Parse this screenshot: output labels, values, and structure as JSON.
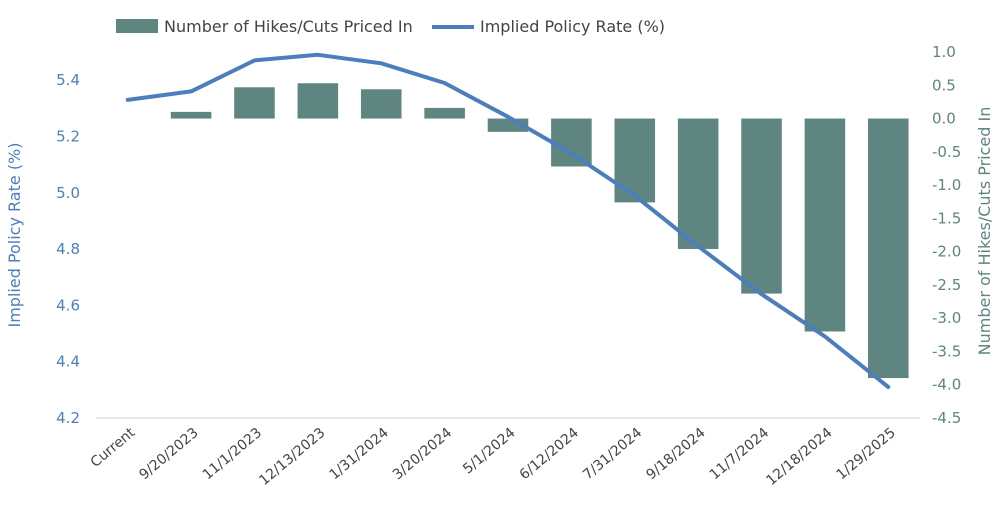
{
  "chart_data": {
    "type": "bar+line",
    "categories": [
      "Current",
      "9/20/2023",
      "11/1/2023",
      "12/13/2023",
      "1/31/2024",
      "3/20/2024",
      "5/1/2024",
      "6/12/2024",
      "7/31/2024",
      "9/18/2024",
      "11/7/2024",
      "12/18/2024",
      "1/29/2025"
    ],
    "series": [
      {
        "name": "Number of Hikes/Cuts Priced In",
        "kind": "bar",
        "axis": "right",
        "color": "#5e8580",
        "values": [
          0,
          0.1,
          0.47,
          0.53,
          0.44,
          0.16,
          -0.2,
          -0.72,
          -1.26,
          -1.96,
          -2.63,
          -3.2,
          -3.9
        ]
      },
      {
        "name": "Implied Policy Rate (%)",
        "kind": "line",
        "axis": "left",
        "color": "#4d7ebc",
        "values": [
          5.33,
          5.36,
          5.47,
          5.49,
          5.46,
          5.39,
          5.27,
          5.14,
          4.99,
          4.81,
          4.64,
          4.49,
          4.31
        ]
      }
    ],
    "y_left": {
      "label": "Implied Policy Rate (%)",
      "min": 4.2,
      "max": 5.5,
      "step": 0.2,
      "ticks": [
        "4.2",
        "4.4",
        "4.6",
        "4.8",
        "5.0",
        "5.2",
        "5.4"
      ],
      "color": "#4d7ebc"
    },
    "y_right": {
      "label": "Number of Hikes/Cuts Priced In",
      "min": -4.5,
      "max": 1.0,
      "ticks": [
        "-4.5",
        "-4.0",
        "-3.5",
        "-3.0",
        "-2.5",
        "-2.0",
        "-1.5",
        "-1.0",
        "-0.5",
        "0.0",
        "0.5",
        "1.0"
      ],
      "color": "#5e8580"
    },
    "legend_position": "top-left",
    "grid": false
  }
}
